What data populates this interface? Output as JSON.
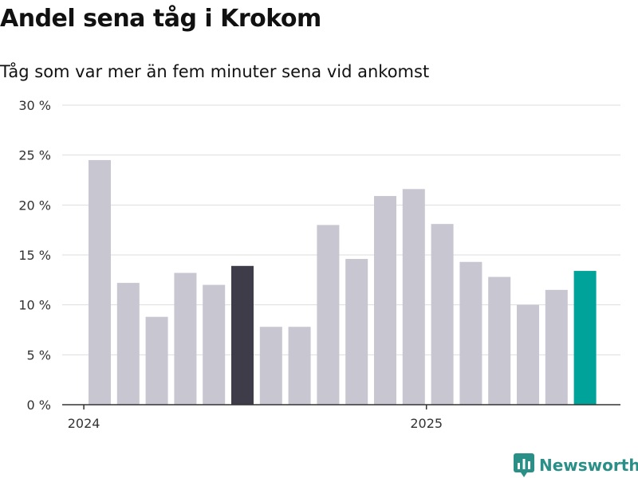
{
  "title": "Andel sena tåg i Krokom",
  "subtitle": "Tåg som var mer än fem minuter sena vid ankomst",
  "brand": {
    "name": "Newsworthy",
    "color": "#2a8f87",
    "icon": "newsworthy-bar-chart-icon"
  },
  "colors": {
    "default_bar": "#c8c7d1",
    "highlight_bar": "#3e3c49",
    "latest_bar": "#00a39a",
    "grid": "#dddddd",
    "axis": "#333333"
  },
  "chart_data": {
    "type": "bar",
    "title": "Andel sena tåg i Krokom",
    "subtitle": "Tåg som var mer än fem minuter sena vid ankomst",
    "xlabel": "",
    "ylabel": "",
    "x": [
      "2024-01",
      "2024-02",
      "2024-03",
      "2024-04",
      "2024-05",
      "2024-06",
      "2024-07",
      "2024-08",
      "2024-09",
      "2024-10",
      "2024-11",
      "2024-12",
      "2025-01",
      "2025-02",
      "2025-03",
      "2025-04",
      "2025-05",
      "2025-06"
    ],
    "values": [
      24.5,
      12.2,
      8.8,
      13.2,
      12.0,
      13.9,
      7.8,
      7.8,
      18.0,
      14.6,
      20.9,
      21.6,
      18.1,
      14.3,
      12.8,
      10.0,
      11.5,
      13.4
    ],
    "highlight": {
      "2024-06": "highlight_bar",
      "2025-06": "latest_bar"
    },
    "ylim": [
      0,
      30
    ],
    "yticks": [
      0,
      5,
      10,
      15,
      20,
      25,
      30
    ],
    "ytick_labels": [
      "0 %",
      "5 %",
      "10 %",
      "15 %",
      "20 %",
      "25 %",
      "30 %"
    ],
    "xtick_labels": [
      {
        "at": "2024-01",
        "label": "2024"
      },
      {
        "at": "2025-01",
        "label": "2025"
      }
    ],
    "grid": true,
    "legend": "none"
  }
}
